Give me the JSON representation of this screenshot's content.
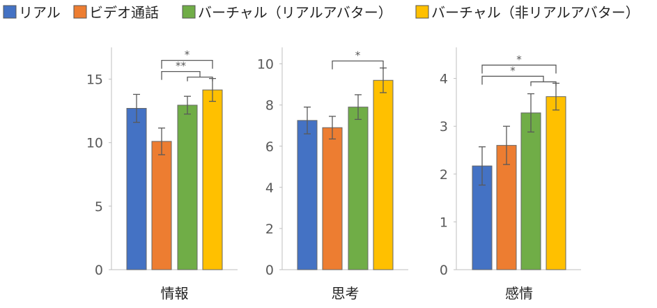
{
  "legend": {
    "position": "top",
    "items": [
      {
        "label": "リアル",
        "color": "#4472C4"
      },
      {
        "label": "ビデオ通話",
        "color": "#ED7D31"
      },
      {
        "label": "バーチャル（リアルアバター）",
        "color": "#70AD47"
      },
      {
        "label": "バーチャル（非リアルアバター）",
        "color": "#FFC000"
      }
    ]
  },
  "chart_data": [
    {
      "type": "bar",
      "xlabel": "情報",
      "ylim": [
        0,
        17.5
      ],
      "yticks": [
        "0",
        "5",
        "10",
        "15"
      ],
      "grid": false,
      "series": [
        {
          "name": "リアル",
          "values": [
            12.7
          ],
          "error": [
            1.1
          ],
          "color": "#4472C4"
        },
        {
          "name": "ビデオ通話",
          "values": [
            10.1
          ],
          "error": [
            1.05
          ],
          "color": "#ED7D31"
        },
        {
          "name": "バーチャル（リアルアバター）",
          "values": [
            12.95
          ],
          "error": [
            0.7
          ],
          "color": "#70AD47"
        },
        {
          "name": "バーチャル（非リアルアバター）",
          "values": [
            14.15
          ],
          "error": [
            0.9
          ],
          "color": "#FFC000"
        }
      ],
      "significance": [
        {
          "from": "ビデオ通話",
          "to": "バーチャル（非リアルアバター）",
          "label": "*"
        },
        {
          "from": "ビデオ通話",
          "to": "バーチャル（リアルアバター）/バーチャル（非リアルアバター）",
          "label": "**"
        }
      ]
    },
    {
      "type": "bar",
      "xlabel": "思考",
      "ylim": [
        0,
        10.8
      ],
      "yticks": [
        "0",
        "2",
        "4",
        "6",
        "8",
        "10"
      ],
      "grid": false,
      "series": [
        {
          "name": "リアル",
          "values": [
            7.25
          ],
          "error": [
            0.65
          ],
          "color": "#4472C4"
        },
        {
          "name": "ビデオ通話",
          "values": [
            6.9
          ],
          "error": [
            0.55
          ],
          "color": "#ED7D31"
        },
        {
          "name": "バーチャル（リアルアバター）",
          "values": [
            7.9
          ],
          "error": [
            0.6
          ],
          "color": "#70AD47"
        },
        {
          "name": "バーチャル（非リアルアバター）",
          "values": [
            9.2
          ],
          "error": [
            0.6
          ],
          "color": "#FFC000"
        }
      ],
      "significance": [
        {
          "from": "ビデオ通話",
          "to": "バーチャル（非リアルアバター）",
          "label": "*"
        }
      ]
    },
    {
      "type": "bar",
      "xlabel": "感情",
      "ylim": [
        0,
        4.65
      ],
      "yticks": [
        "0",
        "1",
        "2",
        "3",
        "4"
      ],
      "grid": false,
      "series": [
        {
          "name": "リアル",
          "values": [
            2.17
          ],
          "error": [
            0.4
          ],
          "color": "#4472C4"
        },
        {
          "name": "ビデオ通話",
          "values": [
            2.6
          ],
          "error": [
            0.4
          ],
          "color": "#ED7D31"
        },
        {
          "name": "バーチャル（リアルアバター）",
          "values": [
            3.28
          ],
          "error": [
            0.4
          ],
          "color": "#70AD47"
        },
        {
          "name": "バーチャル（非リアルアバター）",
          "values": [
            3.62
          ],
          "error": [
            0.28
          ],
          "color": "#FFC000"
        }
      ],
      "significance": [
        {
          "from": "リアル",
          "to": "バーチャル（非リアルアバター）",
          "label": "*"
        },
        {
          "from": "リアル",
          "to": "バーチャル（リアルアバター）/バーチャル（非リアルアバター）",
          "label": "*"
        }
      ]
    }
  ]
}
